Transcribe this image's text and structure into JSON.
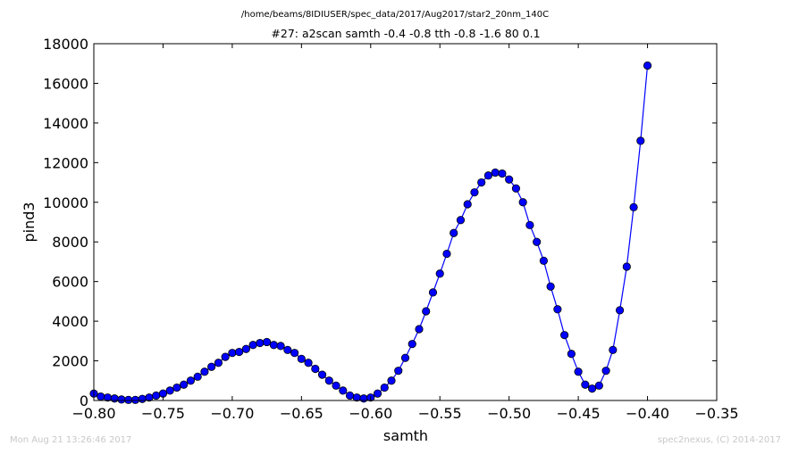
{
  "header": {
    "file_path": "/home/beams/8IDIUSER/spec_data/2017/Aug2017/star2_20nm_140C",
    "scan_title": "#27: a2scan  samth -0.4 -0.8  tth -0.8 -1.6  80 0.1"
  },
  "footer": {
    "timestamp": "Mon Aug 21 13:26:46 2017",
    "credit": "spec2nexus, (C) 2014-2017"
  },
  "colors": {
    "series": "#0000ff",
    "axes": "#000000"
  },
  "chart_data": {
    "type": "line",
    "title": "#27: a2scan  samth -0.4 -0.8  tth -0.8 -1.6  80 0.1",
    "xlabel": "samth",
    "ylabel": "pind3",
    "xlim": [
      -0.8,
      -0.35
    ],
    "ylim": [
      0,
      18000
    ],
    "xticks": [
      -0.8,
      -0.75,
      -0.7,
      -0.65,
      -0.6,
      -0.55,
      -0.5,
      -0.45,
      -0.4,
      -0.35
    ],
    "xtick_labels": [
      "−0.80",
      "−0.75",
      "−0.70",
      "−0.65",
      "−0.60",
      "−0.55",
      "−0.50",
      "−0.45",
      "−0.40",
      "−0.35"
    ],
    "yticks": [
      0,
      2000,
      4000,
      6000,
      8000,
      10000,
      12000,
      14000,
      16000,
      18000
    ],
    "ytick_labels": [
      "0",
      "2000",
      "4000",
      "6000",
      "8000",
      "10000",
      "12000",
      "14000",
      "16000",
      "18000"
    ],
    "grid": false,
    "marker": "circle",
    "series": [
      {
        "x": [
          -0.8,
          -0.795,
          -0.79,
          -0.785,
          -0.78,
          -0.775,
          -0.77,
          -0.765,
          -0.76,
          -0.755,
          -0.75,
          -0.745,
          -0.74,
          -0.735,
          -0.73,
          -0.725,
          -0.72,
          -0.715,
          -0.71,
          -0.705,
          -0.7,
          -0.695,
          -0.69,
          -0.685,
          -0.68,
          -0.675,
          -0.67,
          -0.665,
          -0.66,
          -0.655,
          -0.65,
          -0.645,
          -0.64,
          -0.635,
          -0.63,
          -0.625,
          -0.62,
          -0.615,
          -0.61,
          -0.605,
          -0.6,
          -0.595,
          -0.59,
          -0.585,
          -0.58,
          -0.575,
          -0.57,
          -0.565,
          -0.56,
          -0.555,
          -0.55,
          -0.545,
          -0.54,
          -0.535,
          -0.53,
          -0.525,
          -0.52,
          -0.515,
          -0.51,
          -0.505,
          -0.5,
          -0.495,
          -0.49,
          -0.485,
          -0.48,
          -0.475,
          -0.47,
          -0.465,
          -0.46,
          -0.455,
          -0.45,
          -0.445,
          -0.44,
          -0.435,
          -0.43,
          -0.425,
          -0.42,
          -0.415,
          -0.41,
          -0.405,
          -0.4
        ],
        "y": [
          350,
          200,
          150,
          100,
          50,
          30,
          30,
          80,
          150,
          250,
          350,
          500,
          650,
          800,
          1000,
          1200,
          1450,
          1700,
          1900,
          2200,
          2400,
          2450,
          2600,
          2800,
          2900,
          2950,
          2800,
          2750,
          2550,
          2400,
          2100,
          1900,
          1600,
          1300,
          1000,
          750,
          500,
          250,
          150,
          100,
          150,
          350,
          650,
          1000,
          1500,
          2150,
          2850,
          3600,
          4500,
          5450,
          6400,
          7400,
          8450,
          9100,
          9900,
          10500,
          11000,
          11350,
          11500,
          11450,
          11150,
          10700,
          10000,
          8850,
          8000,
          7050,
          5750,
          4600,
          3300,
          2350,
          1450,
          800,
          600,
          750,
          1500,
          2550,
          4550,
          6750,
          9750,
          13100,
          16900
        ]
      }
    ]
  }
}
